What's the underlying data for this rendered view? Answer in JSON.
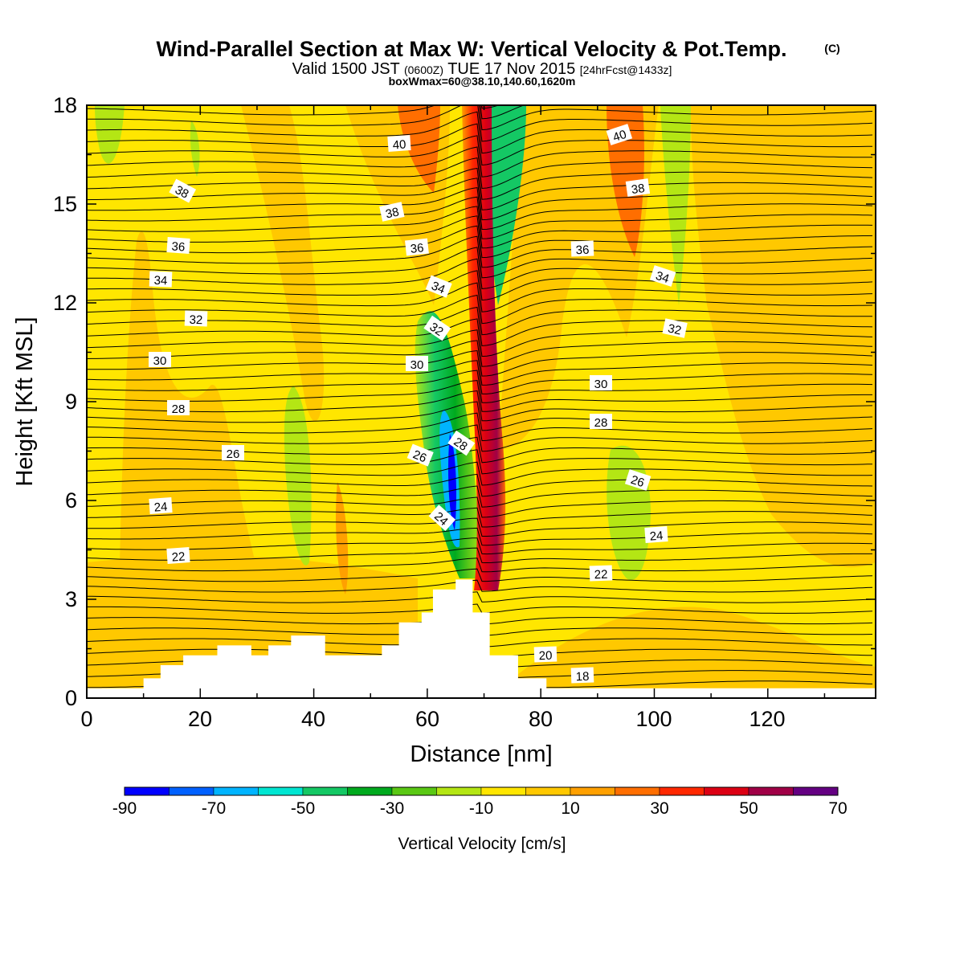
{
  "chart_data": {
    "type": "heatmap",
    "title": "Wind-Parallel Section at Max W: Vertical Velocity & Pot.Temp.",
    "title_mark": "(C)",
    "subtitle_parts": [
      "Valid 1500 JST",
      "(0600Z)",
      "TUE 17 Nov 2015",
      "[24hrFcst@1433z]"
    ],
    "box_info": "boxWmax=60@38.10,140.60,1620m",
    "xlabel": "Distance [nm]",
    "ylabel": "Height [Kft MSL]",
    "xlim": [
      0,
      139
    ],
    "ylim": [
      0,
      18
    ],
    "x_ticks": [
      "0",
      "20",
      "40",
      "60",
      "80",
      "100",
      "120"
    ],
    "y_ticks": [
      "0",
      "3",
      "6",
      "9",
      "12",
      "15",
      "18"
    ],
    "colorbar": {
      "title": "Vertical Velocity [cm/s]",
      "tick_labels": [
        "-90",
        "-70",
        "-50",
        "-30",
        "-10",
        "10",
        "30",
        "50",
        "70"
      ],
      "bins": [
        -90,
        -80,
        -70,
        -60,
        -50,
        -40,
        -30,
        -20,
        -10,
        0,
        10,
        20,
        30,
        40,
        50,
        60,
        70
      ],
      "colors": [
        "#0000ff",
        "#0060ff",
        "#00b4ff",
        "#00e6d2",
        "#14c864",
        "#00aa1e",
        "#5ac814",
        "#b4e614",
        "#ffe600",
        "#ffc800",
        "#ffa000",
        "#ff6e00",
        "#ff2800",
        "#dc0014",
        "#a00046",
        "#640082"
      ]
    },
    "contour_labels": [
      "40",
      "40",
      "38",
      "38",
      "38",
      "36",
      "36",
      "36",
      "34",
      "34",
      "34",
      "32",
      "32",
      "32",
      "30",
      "30",
      "30",
      "28",
      "28",
      "28",
      "26",
      "26",
      "26",
      "24",
      "24",
      "24",
      "22",
      "22",
      "20",
      "18"
    ],
    "terrain_kft": [
      {
        "x": 0,
        "h": 0.3
      },
      {
        "x": 10,
        "h": 0.6
      },
      {
        "x": 13,
        "h": 1.0
      },
      {
        "x": 17,
        "h": 1.3
      },
      {
        "x": 23,
        "h": 1.6
      },
      {
        "x": 29,
        "h": 1.3
      },
      {
        "x": 32,
        "h": 1.6
      },
      {
        "x": 36,
        "h": 1.9
      },
      {
        "x": 42,
        "h": 1.3
      },
      {
        "x": 52,
        "h": 1.6
      },
      {
        "x": 55,
        "h": 2.3
      },
      {
        "x": 59,
        "h": 2.6
      },
      {
        "x": 61,
        "h": 3.3
      },
      {
        "x": 65,
        "h": 3.6
      },
      {
        "x": 68,
        "h": 2.6
      },
      {
        "x": 71,
        "h": 1.3
      },
      {
        "x": 76,
        "h": 0.6
      },
      {
        "x": 81,
        "h": 0.3
      },
      {
        "x": 139,
        "h": 0.3
      }
    ]
  }
}
